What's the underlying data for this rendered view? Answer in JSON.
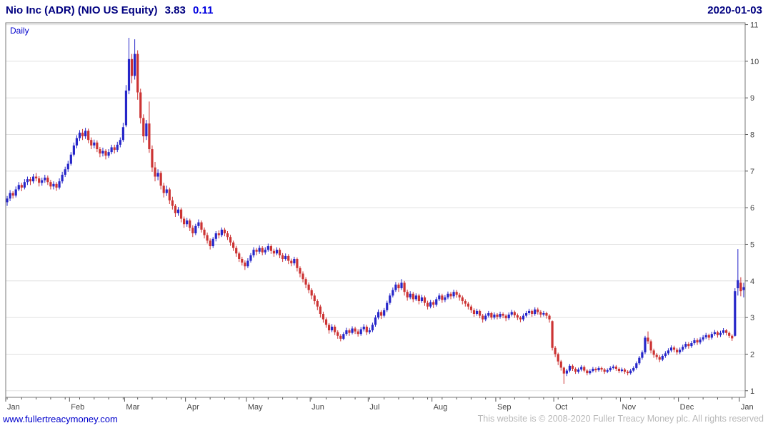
{
  "header": {
    "title": "Nio Inc (ADR) (NIO US Equity)",
    "last_price": "3.83",
    "change": "0.11",
    "date": "2020-01-03"
  },
  "chart": {
    "interval_label": "Daily"
  },
  "footer": {
    "site_link": "www.fullertreacymoney.com",
    "copyright": "This website is © 2008-2020 Fuller Treacy Money plc. All rights reserved"
  },
  "colors": {
    "up": "#2626c9",
    "down": "#cc3333",
    "grid": "#e0e0e0",
    "border": "#7a7a7a",
    "axis": "#555555",
    "axis_text": "#444444",
    "title": "#000080",
    "change": "#0000e0",
    "interval": "#0000cc",
    "link": "#0000cc",
    "copyright": "#b8b8b8"
  },
  "chart_data": {
    "type": "candlestick",
    "title": "Nio Inc (ADR) (NIO US Equity)",
    "interval": "Daily",
    "last_price": 3.83,
    "change": 0.11,
    "as_of_date": "2020-01-03",
    "ylim": [
      0.82,
      11.05
    ],
    "y_ticks": [
      1,
      2,
      3,
      4,
      5,
      6,
      7,
      8,
      9,
      10,
      11
    ],
    "grid": "horizontal-only",
    "y_axis_side": "right",
    "months": [
      {
        "label": "Jan",
        "start": 0
      },
      {
        "label": "Feb",
        "start": 22
      },
      {
        "label": "Mar",
        "start": 41
      },
      {
        "label": "Apr",
        "start": 62
      },
      {
        "label": "May",
        "start": 83
      },
      {
        "label": "Jun",
        "start": 105
      },
      {
        "label": "Jul",
        "start": 125
      },
      {
        "label": "Aug",
        "start": 147
      },
      {
        "label": "Sep",
        "start": 169
      },
      {
        "label": "Oct",
        "start": 189
      },
      {
        "label": "Nov",
        "start": 212
      },
      {
        "label": "Dec",
        "start": 232
      },
      {
        "label": "Jan",
        "start": 253
      }
    ],
    "ohlc": [
      [
        6.15,
        6.32,
        6.05,
        6.25
      ],
      [
        6.25,
        6.48,
        6.18,
        6.4
      ],
      [
        6.4,
        6.45,
        6.25,
        6.33
      ],
      [
        6.33,
        6.58,
        6.28,
        6.5
      ],
      [
        6.5,
        6.7,
        6.45,
        6.62
      ],
      [
        6.62,
        6.68,
        6.45,
        6.55
      ],
      [
        6.55,
        6.78,
        6.5,
        6.7
      ],
      [
        6.7,
        6.85,
        6.62,
        6.78
      ],
      [
        6.78,
        6.84,
        6.62,
        6.72
      ],
      [
        6.72,
        6.92,
        6.66,
        6.85
      ],
      [
        6.85,
        6.95,
        6.72,
        6.8
      ],
      [
        6.8,
        6.86,
        6.58,
        6.68
      ],
      [
        6.68,
        6.82,
        6.6,
        6.75
      ],
      [
        6.75,
        6.9,
        6.68,
        6.82
      ],
      [
        6.82,
        6.88,
        6.62,
        6.7
      ],
      [
        6.7,
        6.76,
        6.5,
        6.58
      ],
      [
        6.58,
        6.72,
        6.5,
        6.65
      ],
      [
        6.65,
        6.7,
        6.46,
        6.55
      ],
      [
        6.55,
        6.8,
        6.5,
        6.72
      ],
      [
        6.72,
        6.98,
        6.66,
        6.9
      ],
      [
        6.9,
        7.12,
        6.84,
        7.05
      ],
      [
        7.05,
        7.28,
        6.98,
        7.2
      ],
      [
        7.2,
        7.52,
        7.15,
        7.45
      ],
      [
        7.45,
        7.78,
        7.4,
        7.7
      ],
      [
        7.7,
        7.98,
        7.62,
        7.9
      ],
      [
        7.9,
        8.12,
        7.82,
        8.05
      ],
      [
        8.05,
        8.15,
        7.85,
        7.95
      ],
      [
        7.95,
        8.18,
        7.88,
        8.1
      ],
      [
        8.1,
        8.16,
        7.76,
        7.85
      ],
      [
        7.85,
        7.92,
        7.6,
        7.7
      ],
      [
        7.7,
        7.86,
        7.62,
        7.78
      ],
      [
        7.78,
        7.84,
        7.52,
        7.6
      ],
      [
        7.6,
        7.66,
        7.38,
        7.48
      ],
      [
        7.48,
        7.64,
        7.4,
        7.55
      ],
      [
        7.55,
        7.6,
        7.32,
        7.42
      ],
      [
        7.42,
        7.6,
        7.36,
        7.52
      ],
      [
        7.52,
        7.72,
        7.46,
        7.65
      ],
      [
        7.65,
        7.72,
        7.48,
        7.58
      ],
      [
        7.58,
        7.8,
        7.52,
        7.72
      ],
      [
        7.72,
        7.92,
        7.65,
        7.85
      ],
      [
        7.85,
        8.32,
        7.8,
        8.2
      ],
      [
        8.25,
        9.35,
        8.2,
        9.2
      ],
      [
        9.2,
        10.64,
        9.1,
        10.06
      ],
      [
        10.06,
        10.2,
        9.4,
        9.6
      ],
      [
        9.6,
        10.6,
        9.5,
        10.2
      ],
      [
        10.2,
        10.3,
        8.95,
        9.15
      ],
      [
        9.15,
        9.25,
        8.3,
        8.45
      ],
      [
        8.45,
        8.55,
        7.78,
        7.95
      ],
      [
        7.95,
        8.4,
        7.85,
        8.3
      ],
      [
        8.3,
        8.9,
        7.5,
        7.6
      ],
      [
        7.6,
        7.7,
        6.98,
        7.1
      ],
      [
        7.1,
        7.25,
        6.72,
        6.85
      ],
      [
        6.85,
        7.05,
        6.75,
        6.95
      ],
      [
        6.95,
        7.0,
        6.5,
        6.6
      ],
      [
        6.6,
        6.68,
        6.28,
        6.4
      ],
      [
        6.4,
        6.6,
        6.32,
        6.5
      ],
      [
        6.5,
        6.55,
        6.1,
        6.2
      ],
      [
        6.2,
        6.3,
        5.95,
        6.05
      ],
      [
        6.05,
        6.1,
        5.75,
        5.85
      ],
      [
        5.85,
        6.02,
        5.78,
        5.95
      ],
      [
        5.95,
        6.0,
        5.6,
        5.7
      ],
      [
        5.7,
        5.76,
        5.45,
        5.55
      ],
      [
        5.55,
        5.72,
        5.48,
        5.65
      ],
      [
        5.65,
        5.7,
        5.36,
        5.45
      ],
      [
        5.45,
        5.52,
        5.2,
        5.3
      ],
      [
        5.3,
        5.56,
        5.25,
        5.5
      ],
      [
        5.5,
        5.68,
        5.44,
        5.6
      ],
      [
        5.6,
        5.65,
        5.32,
        5.4
      ],
      [
        5.4,
        5.46,
        5.16,
        5.25
      ],
      [
        5.25,
        5.32,
        5.02,
        5.1
      ],
      [
        5.1,
        5.16,
        4.86,
        4.95
      ],
      [
        4.95,
        5.2,
        4.9,
        5.15
      ],
      [
        5.15,
        5.36,
        5.08,
        5.3
      ],
      [
        5.3,
        5.38,
        5.16,
        5.25
      ],
      [
        5.25,
        5.46,
        5.2,
        5.4
      ],
      [
        5.4,
        5.45,
        5.22,
        5.3
      ],
      [
        5.3,
        5.36,
        5.12,
        5.2
      ],
      [
        5.2,
        5.26,
        4.96,
        5.05
      ],
      [
        5.05,
        5.1,
        4.82,
        4.9
      ],
      [
        4.9,
        4.96,
        4.66,
        4.75
      ],
      [
        4.75,
        4.8,
        4.52,
        4.6
      ],
      [
        4.6,
        4.66,
        4.42,
        4.5
      ],
      [
        4.5,
        4.56,
        4.3,
        4.4
      ],
      [
        4.4,
        4.62,
        4.35,
        4.55
      ],
      [
        4.55,
        4.76,
        4.5,
        4.7
      ],
      [
        4.7,
        4.92,
        4.64,
        4.85
      ],
      [
        4.85,
        4.9,
        4.7,
        4.8
      ],
      [
        4.8,
        4.97,
        4.74,
        4.9
      ],
      [
        4.9,
        4.95,
        4.7,
        4.78
      ],
      [
        4.78,
        4.92,
        4.72,
        4.85
      ],
      [
        4.85,
        5.02,
        4.8,
        4.95
      ],
      [
        4.95,
        5.0,
        4.74,
        4.82
      ],
      [
        4.82,
        4.88,
        4.66,
        4.75
      ],
      [
        4.75,
        4.92,
        4.7,
        4.85
      ],
      [
        4.85,
        4.9,
        4.62,
        4.7
      ],
      [
        4.7,
        4.76,
        4.52,
        4.6
      ],
      [
        4.6,
        4.75,
        4.55,
        4.68
      ],
      [
        4.68,
        4.73,
        4.46,
        4.55
      ],
      [
        4.55,
        4.61,
        4.4,
        4.48
      ],
      [
        4.48,
        4.66,
        4.42,
        4.6
      ],
      [
        4.6,
        4.64,
        4.26,
        4.35
      ],
      [
        4.35,
        4.4,
        4.1,
        4.2
      ],
      [
        4.2,
        4.26,
        3.96,
        4.05
      ],
      [
        4.05,
        4.1,
        3.8,
        3.9
      ],
      [
        3.9,
        3.96,
        3.66,
        3.75
      ],
      [
        3.75,
        3.8,
        3.5,
        3.6
      ],
      [
        3.6,
        3.66,
        3.36,
        3.45
      ],
      [
        3.45,
        3.5,
        3.2,
        3.3
      ],
      [
        3.3,
        3.35,
        3.0,
        3.1
      ],
      [
        3.1,
        3.16,
        2.86,
        2.95
      ],
      [
        2.95,
        3.0,
        2.72,
        2.8
      ],
      [
        2.8,
        2.85,
        2.56,
        2.65
      ],
      [
        2.65,
        2.82,
        2.6,
        2.75
      ],
      [
        2.75,
        2.8,
        2.52,
        2.6
      ],
      [
        2.6,
        2.65,
        2.42,
        2.5
      ],
      [
        2.5,
        2.55,
        2.35,
        2.42
      ],
      [
        2.42,
        2.6,
        2.38,
        2.55
      ],
      [
        2.55,
        2.72,
        2.5,
        2.65
      ],
      [
        2.65,
        2.7,
        2.5,
        2.58
      ],
      [
        2.58,
        2.76,
        2.54,
        2.7
      ],
      [
        2.7,
        2.75,
        2.55,
        2.62
      ],
      [
        2.62,
        2.68,
        2.48,
        2.55
      ],
      [
        2.55,
        2.74,
        2.5,
        2.68
      ],
      [
        2.68,
        2.82,
        2.62,
        2.75
      ],
      [
        2.75,
        2.8,
        2.52,
        2.6
      ],
      [
        2.6,
        2.72,
        2.55,
        2.65
      ],
      [
        2.65,
        2.86,
        2.6,
        2.8
      ],
      [
        2.8,
        3.06,
        2.75,
        3.0
      ],
      [
        3.0,
        3.22,
        2.95,
        3.15
      ],
      [
        3.15,
        3.2,
        2.96,
        3.05
      ],
      [
        3.05,
        3.26,
        3.0,
        3.2
      ],
      [
        3.2,
        3.46,
        3.15,
        3.4
      ],
      [
        3.4,
        3.66,
        3.35,
        3.6
      ],
      [
        3.6,
        3.82,
        3.55,
        3.75
      ],
      [
        3.75,
        3.97,
        3.7,
        3.9
      ],
      [
        3.9,
        3.95,
        3.7,
        3.8
      ],
      [
        3.8,
        4.05,
        3.75,
        3.95
      ],
      [
        3.95,
        4.0,
        3.6,
        3.7
      ],
      [
        3.7,
        3.76,
        3.46,
        3.55
      ],
      [
        3.55,
        3.72,
        3.5,
        3.65
      ],
      [
        3.65,
        3.7,
        3.42,
        3.5
      ],
      [
        3.5,
        3.66,
        3.45,
        3.6
      ],
      [
        3.6,
        3.65,
        3.36,
        3.45
      ],
      [
        3.45,
        3.62,
        3.4,
        3.55
      ],
      [
        3.55,
        3.6,
        3.32,
        3.4
      ],
      [
        3.4,
        3.46,
        3.22,
        3.3
      ],
      [
        3.3,
        3.48,
        3.25,
        3.42
      ],
      [
        3.42,
        3.47,
        3.26,
        3.35
      ],
      [
        3.35,
        3.56,
        3.3,
        3.5
      ],
      [
        3.5,
        3.66,
        3.45,
        3.6
      ],
      [
        3.6,
        3.65,
        3.4,
        3.48
      ],
      [
        3.48,
        3.61,
        3.42,
        3.55
      ],
      [
        3.55,
        3.71,
        3.5,
        3.65
      ],
      [
        3.65,
        3.7,
        3.5,
        3.58
      ],
      [
        3.58,
        3.76,
        3.52,
        3.7
      ],
      [
        3.7,
        3.75,
        3.54,
        3.62
      ],
      [
        3.62,
        3.67,
        3.46,
        3.55
      ],
      [
        3.55,
        3.6,
        3.36,
        3.45
      ],
      [
        3.45,
        3.5,
        3.3,
        3.38
      ],
      [
        3.38,
        3.43,
        3.22,
        3.3
      ],
      [
        3.3,
        3.35,
        3.12,
        3.2
      ],
      [
        3.2,
        3.25,
        3.02,
        3.1
      ],
      [
        3.1,
        3.24,
        3.05,
        3.18
      ],
      [
        3.18,
        3.22,
        2.98,
        3.05
      ],
      [
        3.05,
        3.1,
        2.86,
        2.95
      ],
      [
        2.95,
        3.11,
        2.9,
        3.05
      ],
      [
        3.05,
        3.18,
        3.0,
        3.12
      ],
      [
        3.12,
        3.16,
        2.94,
        3.0
      ],
      [
        3.0,
        3.14,
        2.95,
        3.08
      ],
      [
        3.08,
        3.12,
        2.95,
        3.02
      ],
      [
        3.02,
        3.16,
        2.97,
        3.1
      ],
      [
        3.1,
        3.14,
        2.98,
        3.05
      ],
      [
        3.05,
        3.09,
        2.9,
        2.98
      ],
      [
        2.98,
        3.14,
        2.93,
        3.08
      ],
      [
        3.08,
        3.21,
        3.03,
        3.15
      ],
      [
        3.15,
        3.19,
        2.99,
        3.06
      ],
      [
        3.06,
        3.11,
        2.93,
        3.0
      ],
      [
        3.0,
        3.04,
        2.87,
        2.95
      ],
      [
        2.95,
        3.11,
        2.9,
        3.05
      ],
      [
        3.05,
        3.18,
        3.0,
        3.12
      ],
      [
        3.12,
        3.24,
        3.07,
        3.18
      ],
      [
        3.18,
        3.22,
        3.02,
        3.1
      ],
      [
        3.1,
        3.28,
        3.05,
        3.22
      ],
      [
        3.22,
        3.27,
        3.08,
        3.15
      ],
      [
        3.15,
        3.2,
        3.0,
        3.08
      ],
      [
        3.08,
        3.18,
        3.03,
        3.12
      ],
      [
        3.12,
        3.16,
        2.97,
        3.05
      ],
      [
        3.05,
        3.09,
        2.86,
        2.95
      ],
      [
        2.9,
        2.92,
        2.1,
        2.17
      ],
      [
        2.17,
        2.22,
        1.92,
        2.0
      ],
      [
        2.0,
        2.04,
        1.7,
        1.8
      ],
      [
        1.8,
        1.84,
        1.55,
        1.63
      ],
      [
        1.63,
        1.66,
        1.19,
        1.47
      ],
      [
        1.47,
        1.6,
        1.4,
        1.55
      ],
      [
        1.55,
        1.73,
        1.5,
        1.68
      ],
      [
        1.68,
        1.72,
        1.54,
        1.6
      ],
      [
        1.6,
        1.64,
        1.46,
        1.52
      ],
      [
        1.52,
        1.63,
        1.47,
        1.58
      ],
      [
        1.58,
        1.7,
        1.53,
        1.65
      ],
      [
        1.65,
        1.69,
        1.5,
        1.55
      ],
      [
        1.55,
        1.59,
        1.42,
        1.48
      ],
      [
        1.48,
        1.59,
        1.44,
        1.54
      ],
      [
        1.54,
        1.65,
        1.5,
        1.6
      ],
      [
        1.6,
        1.64,
        1.5,
        1.56
      ],
      [
        1.56,
        1.67,
        1.52,
        1.62
      ],
      [
        1.62,
        1.66,
        1.52,
        1.58
      ],
      [
        1.58,
        1.62,
        1.46,
        1.52
      ],
      [
        1.52,
        1.61,
        1.48,
        1.56
      ],
      [
        1.56,
        1.67,
        1.52,
        1.62
      ],
      [
        1.62,
        1.71,
        1.58,
        1.66
      ],
      [
        1.66,
        1.7,
        1.54,
        1.6
      ],
      [
        1.6,
        1.64,
        1.48,
        1.54
      ],
      [
        1.54,
        1.63,
        1.5,
        1.58
      ],
      [
        1.58,
        1.62,
        1.46,
        1.52
      ],
      [
        1.52,
        1.56,
        1.42,
        1.48
      ],
      [
        1.48,
        1.6,
        1.44,
        1.55
      ],
      [
        1.55,
        1.67,
        1.51,
        1.62
      ],
      [
        1.62,
        1.8,
        1.58,
        1.75
      ],
      [
        1.75,
        1.95,
        1.7,
        1.9
      ],
      [
        1.9,
        2.1,
        1.85,
        2.05
      ],
      [
        2.05,
        2.5,
        2.0,
        2.45
      ],
      [
        2.45,
        2.62,
        2.28,
        2.35
      ],
      [
        2.35,
        2.4,
        2.02,
        2.1
      ],
      [
        2.1,
        2.15,
        1.9,
        1.98
      ],
      [
        1.98,
        2.03,
        1.85,
        1.92
      ],
      [
        1.92,
        1.97,
        1.78,
        1.85
      ],
      [
        1.85,
        2.0,
        1.81,
        1.95
      ],
      [
        1.95,
        2.08,
        1.9,
        2.02
      ],
      [
        2.02,
        2.16,
        1.97,
        2.1
      ],
      [
        2.1,
        2.24,
        2.05,
        2.18
      ],
      [
        2.18,
        2.23,
        2.05,
        2.12
      ],
      [
        2.12,
        2.17,
        1.98,
        2.05
      ],
      [
        2.05,
        2.18,
        2.0,
        2.12
      ],
      [
        2.12,
        2.26,
        2.07,
        2.2
      ],
      [
        2.2,
        2.34,
        2.15,
        2.28
      ],
      [
        2.28,
        2.33,
        2.15,
        2.22
      ],
      [
        2.22,
        2.36,
        2.17,
        2.3
      ],
      [
        2.3,
        2.44,
        2.25,
        2.38
      ],
      [
        2.38,
        2.43,
        2.25,
        2.32
      ],
      [
        2.32,
        2.46,
        2.27,
        2.4
      ],
      [
        2.4,
        2.52,
        2.35,
        2.46
      ],
      [
        2.46,
        2.58,
        2.41,
        2.52
      ],
      [
        2.52,
        2.56,
        2.38,
        2.45
      ],
      [
        2.45,
        2.61,
        2.4,
        2.55
      ],
      [
        2.55,
        2.66,
        2.5,
        2.6
      ],
      [
        2.6,
        2.64,
        2.45,
        2.52
      ],
      [
        2.52,
        2.64,
        2.47,
        2.58
      ],
      [
        2.58,
        2.71,
        2.53,
        2.65
      ],
      [
        2.65,
        2.69,
        2.51,
        2.58
      ],
      [
        2.58,
        2.62,
        2.44,
        2.5
      ],
      [
        2.5,
        2.54,
        2.36,
        2.43
      ],
      [
        2.5,
        3.8,
        2.48,
        3.72
      ],
      [
        3.8,
        4.87,
        3.6,
        4.02
      ],
      [
        3.95,
        4.1,
        3.58,
        3.72
      ],
      [
        3.75,
        3.95,
        3.55,
        3.83
      ]
    ]
  }
}
